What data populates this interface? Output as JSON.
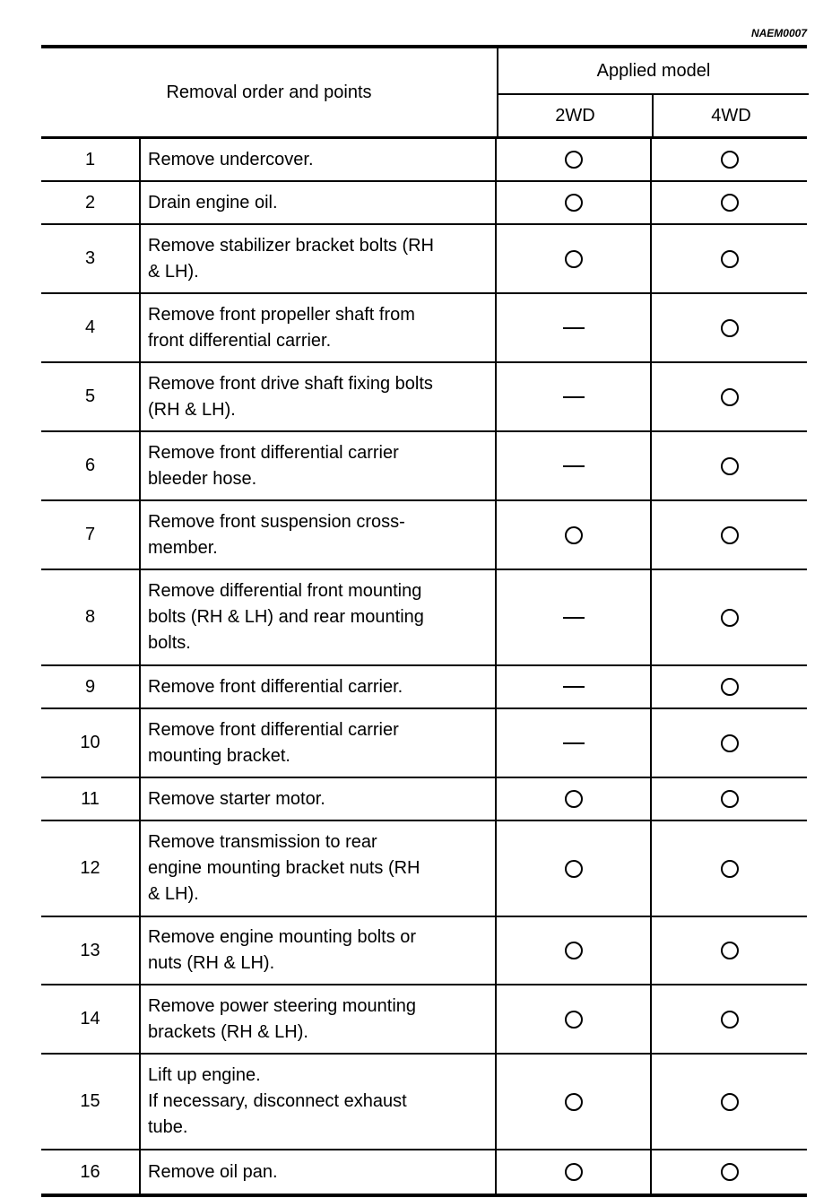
{
  "doc_code": "NAEM0007",
  "header": {
    "removal": "Removal order and points",
    "applied_model": "Applied model",
    "col_2wd": "2WD",
    "col_4wd": "4WD"
  },
  "legend_marks": {
    "circle": "applicable",
    "dash": "not applicable"
  },
  "rows": [
    {
      "no": "1",
      "text": "Remove undercover.",
      "m2wd": "circle",
      "m4wd": "circle"
    },
    {
      "no": "2",
      "text": "Drain engine oil.",
      "m2wd": "circle",
      "m4wd": "circle"
    },
    {
      "no": "3",
      "text": "Remove stabilizer bracket bolts (RH\n& LH).",
      "m2wd": "circle",
      "m4wd": "circle"
    },
    {
      "no": "4",
      "text": "Remove front propeller shaft from\nfront differential carrier.",
      "m2wd": "dash",
      "m4wd": "circle"
    },
    {
      "no": "5",
      "text": "Remove front drive shaft fixing bolts\n(RH & LH).",
      "m2wd": "dash",
      "m4wd": "circle"
    },
    {
      "no": "6",
      "text": "Remove front differential carrier\nbleeder hose.",
      "m2wd": "dash",
      "m4wd": "circle"
    },
    {
      "no": "7",
      "text": "Remove front suspension cross-\nmember.",
      "m2wd": "circle",
      "m4wd": "circle"
    },
    {
      "no": "8",
      "text": "Remove differential front mounting\nbolts (RH & LH) and rear mounting\nbolts.",
      "m2wd": "dash",
      "m4wd": "circle"
    },
    {
      "no": "9",
      "text": "Remove front differential carrier.",
      "m2wd": "dash",
      "m4wd": "circle"
    },
    {
      "no": "10",
      "text": "Remove front differential carrier\nmounting bracket.",
      "m2wd": "dash",
      "m4wd": "circle"
    },
    {
      "no": "11",
      "text": "Remove starter motor.",
      "m2wd": "circle",
      "m4wd": "circle"
    },
    {
      "no": "12",
      "text": "Remove transmission to rear\nengine mounting bracket nuts (RH\n& LH).",
      "m2wd": "circle",
      "m4wd": "circle"
    },
    {
      "no": "13",
      "text": "Remove engine mounting bolts or\nnuts (RH & LH).",
      "m2wd": "circle",
      "m4wd": "circle"
    },
    {
      "no": "14",
      "text": "Remove power steering mounting\nbrackets (RH & LH).",
      "m2wd": "circle",
      "m4wd": "circle"
    },
    {
      "no": "15",
      "text": "Lift up engine.\nIf necessary, disconnect exhaust\ntube.",
      "m2wd": "circle",
      "m4wd": "circle"
    },
    {
      "no": "16",
      "text": "Remove oil pan.",
      "m2wd": "circle",
      "m4wd": "circle"
    }
  ]
}
